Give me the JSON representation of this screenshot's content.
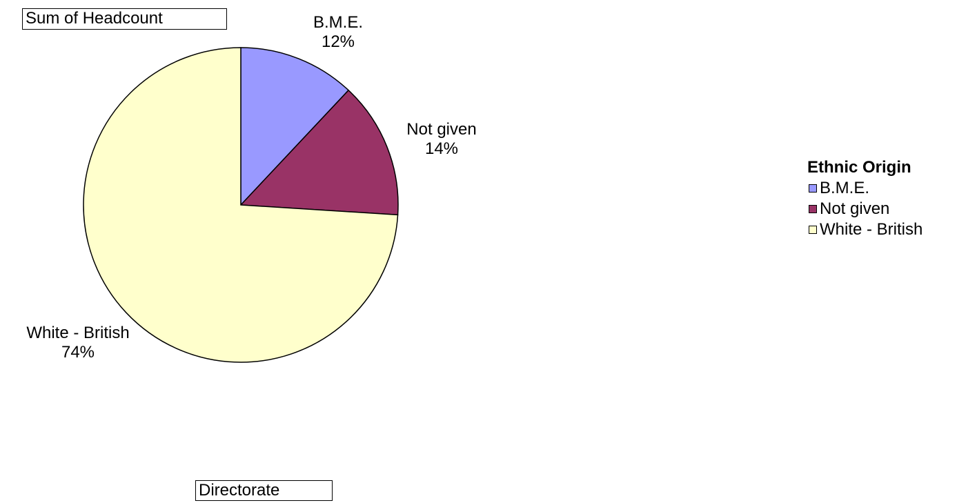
{
  "fields": {
    "data_field": "Sum of Headcount",
    "page_field": "Directorate"
  },
  "chart_data": {
    "type": "pie",
    "title": "",
    "categories": [
      "B.M.E.",
      "Not given",
      "White - British"
    ],
    "values": [
      12,
      14,
      74
    ],
    "percent_labels": [
      "12%",
      "14%",
      "74%"
    ],
    "colors": [
      "#9999ff",
      "#993366",
      "#ffffcc"
    ],
    "legend": {
      "title": "Ethnic Origin",
      "placement": "right",
      "items": [
        "B.M.E.",
        "Not given",
        "White - British"
      ]
    }
  }
}
